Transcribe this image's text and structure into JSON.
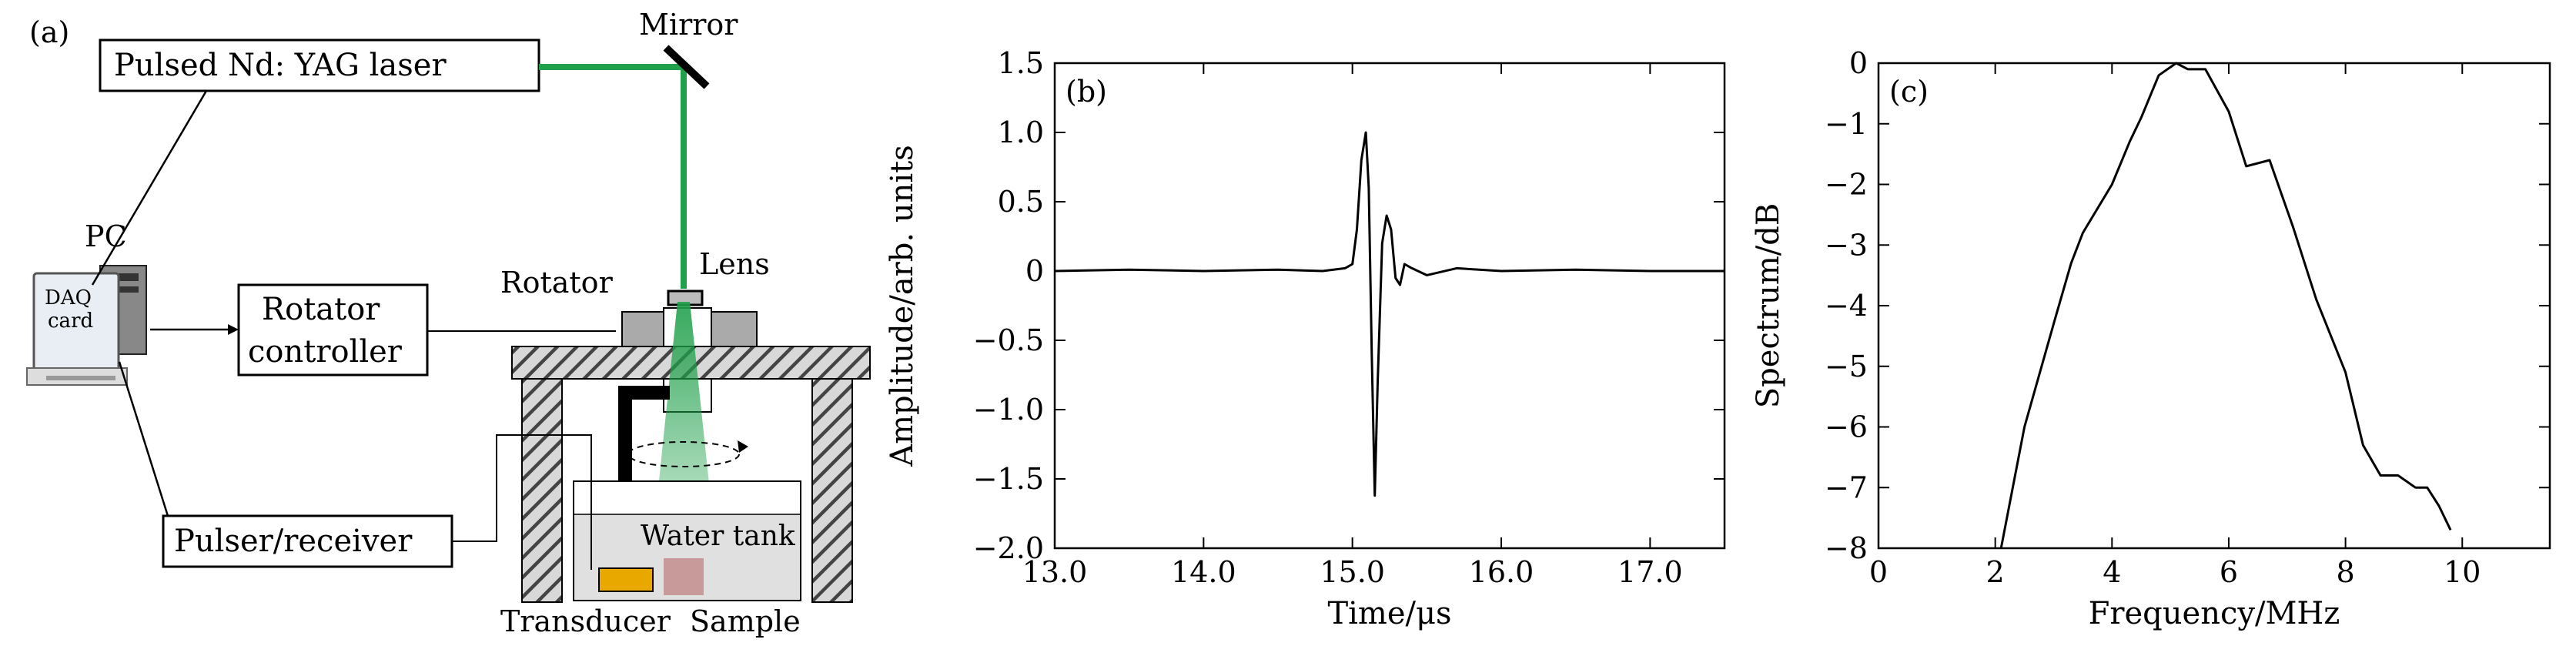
{
  "panel_a": {
    "label": "(a)",
    "laser": "Pulsed Nd: YAG laser",
    "mirror": "Mirror",
    "pc": "PC",
    "daq_line1": "DAQ",
    "daq_line2": "card",
    "rotator_ctrl_line1": "Rotator",
    "rotator_ctrl_line2": "controller",
    "rotator": "Rotator",
    "lens": "Lens",
    "water_tank": "Water tank",
    "pulser": "Pulser/receiver",
    "transducer": "Transducer",
    "sample": "Sample",
    "colors": {
      "laser_beam": "#1fa04a",
      "transducer": "#e8a800",
      "sample": "#c89a9a",
      "water": "#e0e0e0",
      "hatch": "#444444"
    }
  },
  "chart_data": [
    {
      "type": "line",
      "panel_label": "(b)",
      "xlabel": "Time/μs",
      "ylabel": "Amplitude/arb. units",
      "xlim": [
        13.0,
        17.5
      ],
      "ylim": [
        -2.0,
        1.5
      ],
      "xticks": [
        "13.0",
        "14.0",
        "15.0",
        "16.0",
        "17.0"
      ],
      "yticks": [
        "1.5",
        "1.0",
        "0.5",
        "0",
        "−0.5",
        "−1.0",
        "−1.5",
        "−2.0"
      ],
      "grid": false,
      "series": [
        {
          "x": [
            13.0,
            13.5,
            14.0,
            14.5,
            14.8,
            14.95,
            15.0,
            15.03,
            15.06,
            15.09,
            15.11,
            15.13,
            15.15,
            15.17,
            15.2,
            15.23,
            15.26,
            15.29,
            15.32,
            15.35,
            15.4,
            15.5,
            15.7,
            16.0,
            16.5,
            17.0,
            17.5
          ],
          "y": [
            0.0,
            0.01,
            0.0,
            0.01,
            0.0,
            0.02,
            0.05,
            0.3,
            0.8,
            1.0,
            0.6,
            -0.6,
            -1.62,
            -0.8,
            0.2,
            0.4,
            0.3,
            -0.05,
            -0.1,
            0.05,
            0.02,
            -0.03,
            0.02,
            0.0,
            0.01,
            0.0,
            0.0
          ]
        }
      ]
    },
    {
      "type": "line",
      "panel_label": "(c)",
      "xlabel": "Frequency/MHz",
      "ylabel": "Spectrum/dB",
      "xlim": [
        0,
        11.5
      ],
      "ylim": [
        -8,
        0
      ],
      "xticks": [
        "0",
        "2",
        "4",
        "6",
        "8",
        "10"
      ],
      "yticks": [
        "0",
        "−1",
        "−2",
        "−3",
        "−4",
        "−5",
        "−6",
        "−7",
        "−8"
      ],
      "grid": false,
      "series": [
        {
          "x": [
            2.1,
            2.5,
            3.0,
            3.3,
            3.5,
            4.0,
            4.3,
            4.5,
            4.8,
            5.1,
            5.3,
            5.6,
            6.0,
            6.3,
            6.7,
            7.1,
            7.5,
            8.0,
            8.3,
            8.6,
            8.9,
            9.2,
            9.4,
            9.6,
            9.8
          ],
          "y": [
            -8.0,
            -6.0,
            -4.3,
            -3.3,
            -2.8,
            -2.0,
            -1.3,
            -0.9,
            -0.2,
            0.0,
            -0.1,
            -0.1,
            -0.8,
            -1.7,
            -1.6,
            -2.7,
            -3.9,
            -5.1,
            -6.3,
            -6.8,
            -6.8,
            -7.0,
            -7.0,
            -7.3,
            -7.7
          ]
        }
      ]
    }
  ]
}
